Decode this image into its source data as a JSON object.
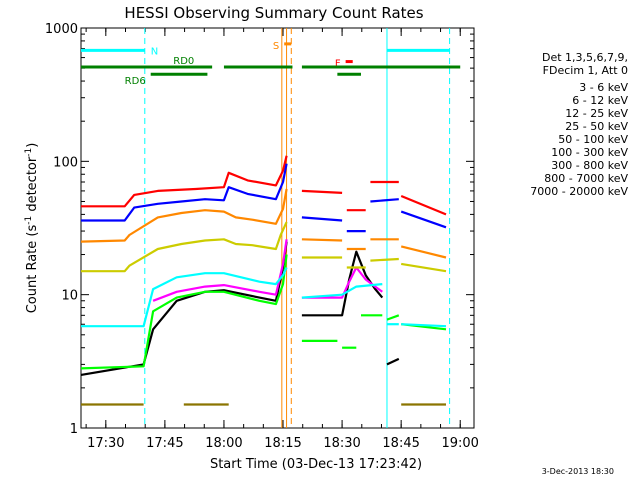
{
  "chart_data": {
    "type": "line",
    "title": "HESSI Observing Summary Count Rates",
    "xlabel": "Start Time (03-Dec-13 17:23:42)",
    "ylabel_main": "Count Rate (s",
    "ylabel_sup1": "-1",
    "ylabel_mid": " detector",
    "ylabel_sup2": "-1",
    "ylabel_end": ")",
    "yscale": "log",
    "ylim": [
      1,
      1000
    ],
    "xlim": [
      17.395,
      19.0583
    ],
    "x_ticks": [
      {
        "label": "17:30",
        "value": 17.5
      },
      {
        "label": "17:45",
        "value": 17.75
      },
      {
        "label": "18:00",
        "value": 18.0
      },
      {
        "label": "18:15",
        "value": 18.25
      },
      {
        "label": "18:30",
        "value": 18.5
      },
      {
        "label": "18:45",
        "value": 18.75
      },
      {
        "label": "19:00",
        "value": 19.0
      }
    ],
    "y_ticks": [
      {
        "label": "1",
        "value": 1
      },
      {
        "label": "10",
        "value": 10
      },
      {
        "label": "100",
        "value": 100
      },
      {
        "label": "1000",
        "value": 1000
      }
    ],
    "legend_header": [
      "Det 1,3,5,6,7,9,",
      "FDecim 1, Att 0"
    ],
    "series": [
      {
        "name": "3 - 6 keV",
        "color": "#000000",
        "segments": [
          [
            [
              17.395,
              2.5
            ],
            [
              17.66,
              3.0
            ],
            [
              17.7,
              5.5
            ],
            [
              17.8,
              9.0
            ],
            [
              17.92,
              10.5
            ],
            [
              18.0,
              10.8
            ],
            [
              18.15,
              9.5
            ],
            [
              18.22,
              9.0
            ],
            [
              18.25,
              16.0
            ],
            [
              18.265,
              25.0
            ]
          ],
          [
            [
              18.33,
              7.0
            ],
            [
              18.5,
              7.0
            ],
            [
              18.53,
              13.0
            ],
            [
              18.56,
              21.0
            ],
            [
              18.6,
              14.0
            ],
            [
              18.64,
              11.0
            ],
            [
              18.67,
              9.5
            ]
          ],
          [
            [
              18.69,
              3.0
            ],
            [
              18.74,
              3.3
            ]
          ]
        ]
      },
      {
        "name": "6 - 12 keV",
        "color": "#ff00ff",
        "segments": [
          [
            [
              17.7,
              9.0
            ],
            [
              17.8,
              10.5
            ],
            [
              17.92,
              11.5
            ],
            [
              18.0,
              11.8
            ],
            [
              18.15,
              10.5
            ],
            [
              18.22,
              10.0
            ],
            [
              18.25,
              17.0
            ],
            [
              18.265,
              26.0
            ]
          ],
          [
            [
              18.33,
              9.5
            ],
            [
              18.5,
              9.5
            ],
            [
              18.53,
              12.5
            ],
            [
              18.56,
              16.0
            ],
            [
              18.6,
              13.0
            ],
            [
              18.64,
              11.5
            ],
            [
              18.67,
              10.5
            ]
          ]
        ]
      },
      {
        "name": "12 - 25 keV",
        "color": "#00ff00",
        "segments": [
          [
            [
              17.395,
              2.8
            ],
            [
              17.66,
              2.9
            ],
            [
              17.7,
              7.5
            ],
            [
              17.8,
              9.5
            ],
            [
              17.92,
              10.5
            ],
            [
              18.0,
              10.5
            ],
            [
              18.15,
              9.0
            ],
            [
              18.22,
              8.5
            ],
            [
              18.25,
              12.0
            ],
            [
              18.265,
              20.0
            ]
          ],
          [
            [
              18.33,
              4.5
            ],
            [
              18.48,
              4.5
            ]
          ],
          [
            [
              18.5,
              4.0
            ],
            [
              18.56,
              4.0
            ]
          ],
          [
            [
              18.58,
              7.0
            ],
            [
              18.67,
              7.0
            ]
          ],
          [
            [
              18.69,
              6.5
            ],
            [
              18.74,
              7.0
            ]
          ],
          [
            [
              18.75,
              6.0
            ],
            [
              18.94,
              5.5
            ]
          ]
        ]
      },
      {
        "name": "25 - 50 keV",
        "color": "#00ffff",
        "segments": [
          [
            [
              17.395,
              5.8
            ],
            [
              17.66,
              5.8
            ],
            [
              17.7,
              11.0
            ],
            [
              17.8,
              13.5
            ],
            [
              17.92,
              14.5
            ],
            [
              18.0,
              14.5
            ],
            [
              18.15,
              12.5
            ],
            [
              18.22,
              12.0
            ],
            [
              18.25,
              14.0
            ],
            [
              18.265,
              16.0
            ]
          ],
          [
            [
              18.33,
              9.5
            ],
            [
              18.5,
              10.0
            ],
            [
              18.56,
              11.5
            ],
            [
              18.67,
              12.0
            ]
          ],
          [
            [
              18.69,
              6.0
            ],
            [
              18.74,
              6.0
            ]
          ],
          [
            [
              18.75,
              6.0
            ],
            [
              18.94,
              5.8
            ]
          ]
        ]
      },
      {
        "name": "50 - 100 keV",
        "color": "#cccc00",
        "segments": [
          [
            [
              17.395,
              15.0
            ],
            [
              17.58,
              15.0
            ],
            [
              17.6,
              16.5
            ],
            [
              17.72,
              22.0
            ],
            [
              17.82,
              24.0
            ],
            [
              17.92,
              25.5
            ],
            [
              18.0,
              26.0
            ],
            [
              18.05,
              24.0
            ],
            [
              18.12,
              23.5
            ],
            [
              18.22,
              22.0
            ],
            [
              18.24,
              28.0
            ],
            [
              18.265,
              35.0
            ]
          ],
          [
            [
              18.33,
              19.0
            ],
            [
              18.5,
              19.0
            ]
          ],
          [
            [
              18.52,
              16.0
            ],
            [
              18.6,
              16.0
            ]
          ],
          [
            [
              18.62,
              18.0
            ],
            [
              18.74,
              18.5
            ]
          ],
          [
            [
              18.75,
              17.0
            ],
            [
              18.94,
              15.0
            ]
          ]
        ]
      },
      {
        "name": "100 - 300 keV",
        "color": "#ff0000",
        "segments": [
          [
            [
              17.395,
              46.0
            ],
            [
              17.58,
              46.0
            ],
            [
              17.62,
              56.0
            ],
            [
              17.72,
              60.0
            ],
            [
              17.88,
              62.0
            ],
            [
              18.0,
              64.0
            ],
            [
              18.02,
              82.0
            ],
            [
              18.1,
              72.0
            ],
            [
              18.22,
              66.0
            ],
            [
              18.25,
              85.0
            ],
            [
              18.265,
              110.0
            ]
          ],
          [
            [
              18.33,
              60.0
            ],
            [
              18.5,
              58.0
            ]
          ],
          [
            [
              18.52,
              43.0
            ],
            [
              18.6,
              43.0
            ]
          ],
          [
            [
              18.62,
              70.0
            ],
            [
              18.74,
              70.0
            ]
          ],
          [
            [
              18.75,
              55.0
            ],
            [
              18.94,
              40.0
            ]
          ]
        ]
      },
      {
        "name": "300 - 800 keV",
        "color": "#0000ff",
        "segments": [
          [
            [
              17.395,
              36.0
            ],
            [
              17.58,
              36.0
            ],
            [
              17.62,
              45.0
            ],
            [
              17.72,
              48.0
            ],
            [
              17.82,
              50.0
            ],
            [
              17.92,
              52.0
            ],
            [
              18.0,
              51.0
            ],
            [
              18.02,
              64.0
            ],
            [
              18.1,
              57.0
            ],
            [
              18.22,
              52.0
            ],
            [
              18.25,
              70.0
            ],
            [
              18.265,
              96.0
            ]
          ],
          [
            [
              18.33,
              38.0
            ],
            [
              18.5,
              36.0
            ]
          ],
          [
            [
              18.52,
              30.0
            ],
            [
              18.6,
              30.0
            ]
          ],
          [
            [
              18.62,
              50.0
            ],
            [
              18.74,
              52.0
            ]
          ],
          [
            [
              18.75,
              42.0
            ],
            [
              18.94,
              32.0
            ]
          ]
        ]
      },
      {
        "name": "800 - 7000 keV",
        "color": "#ff8800",
        "segments": [
          [
            [
              17.395,
              25.0
            ],
            [
              17.58,
              25.5
            ],
            [
              17.6,
              28.0
            ],
            [
              17.72,
              38.0
            ],
            [
              17.82,
              41.0
            ],
            [
              17.92,
              43.0
            ],
            [
              18.0,
              42.0
            ],
            [
              18.05,
              38.0
            ],
            [
              18.12,
              36.5
            ],
            [
              18.22,
              34.0
            ],
            [
              18.25,
              44.0
            ],
            [
              18.265,
              62.0
            ]
          ],
          [
            [
              18.33,
              26.0
            ],
            [
              18.5,
              25.5
            ]
          ],
          [
            [
              18.52,
              22.0
            ],
            [
              18.6,
              22.0
            ]
          ],
          [
            [
              18.62,
              26.0
            ],
            [
              18.74,
              26.0
            ]
          ],
          [
            [
              18.75,
              23.0
            ],
            [
              18.94,
              19.0
            ]
          ]
        ]
      },
      {
        "name": "7000 - 20000 keV",
        "color": "#8b7500",
        "segments": [
          [
            [
              17.395,
              1.5
            ],
            [
              17.66,
              1.5
            ]
          ],
          [
            [
              17.83,
              1.5
            ],
            [
              18.02,
              1.5
            ]
          ],
          [
            [
              18.75,
              1.5
            ],
            [
              18.94,
              1.5
            ]
          ]
        ]
      }
    ],
    "vertical_lines": [
      {
        "x": 17.665,
        "color": "#00ffff",
        "style": "dashed"
      },
      {
        "x": 18.69,
        "color": "#00ffff",
        "style": "solid"
      },
      {
        "x": 18.955,
        "color": "#00ffff",
        "style": "dashed"
      },
      {
        "x": 18.245,
        "color": "#ff8800",
        "style": "solid"
      },
      {
        "x": 18.265,
        "color": "#ff8800",
        "style": "solid"
      },
      {
        "x": 18.285,
        "color": "#ff8800",
        "style": "dashed"
      }
    ],
    "flag_bars": [
      {
        "label": "N",
        "color": "#00ffff",
        "value": 680,
        "segments": [
          [
            17.395,
            17.665
          ],
          [
            18.69,
            18.955
          ]
        ]
      },
      {
        "label": "S",
        "color": "#ff8800",
        "value": 760,
        "segments": [
          [
            18.255,
            18.285
          ]
        ]
      },
      {
        "label": "F",
        "color": "#ff0000",
        "value": 560,
        "segments": [
          [
            18.515,
            18.545
          ]
        ]
      },
      {
        "label": "RD0",
        "color": "#008000",
        "value": 510,
        "segments": [
          [
            17.395,
            17.95
          ],
          [
            18.0,
            18.29
          ],
          [
            18.33,
            19.0
          ]
        ]
      },
      {
        "label": "RD6",
        "color": "#008000",
        "value": 450,
        "segments": [
          [
            17.69,
            17.93
          ],
          [
            18.48,
            18.58
          ]
        ]
      }
    ],
    "footer_date": "3-Dec-2013 18:30"
  }
}
